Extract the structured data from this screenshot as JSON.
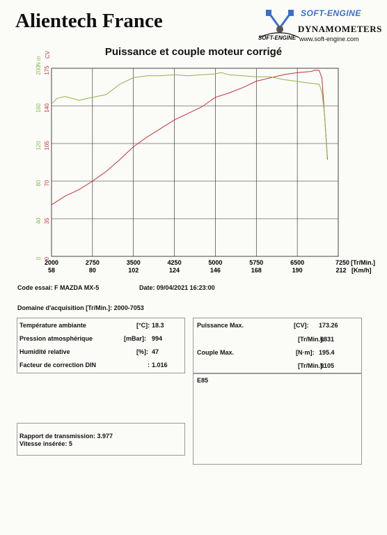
{
  "header": {
    "company": "Alientech France",
    "brand": "SOFT-ENGINE",
    "brand_small": "SOFT-ENGINE",
    "subtitle": "DYNAMOMETERS",
    "url": "www.soft-engine.com"
  },
  "chart_data": {
    "type": "line",
    "title": "Puissance et couple moteur corrigé",
    "x_unit": "[Tr/Min.]",
    "x_unit2": "[Km/h]",
    "x_ticks": [
      "2000",
      "2750",
      "3500",
      "4250",
      "5000",
      "5750",
      "6500",
      "7250"
    ],
    "x_ticks2": [
      "58",
      "80",
      "102",
      "124",
      "146",
      "168",
      "190",
      "212"
    ],
    "xlim": [
      2000,
      7250
    ],
    "y_unit_torque": "N m",
    "y_unit_power": "CV",
    "y_ticks_power": [
      "0",
      "35",
      "70",
      "105",
      "140",
      "175"
    ],
    "y_ticks_torque": [
      "0",
      "40",
      "80",
      "120",
      "160",
      "200"
    ],
    "ylim_power": [
      0,
      175
    ],
    "series": [
      {
        "color": "#c0343a",
        "x": [
          2000,
          2250,
          2500,
          2750,
          3000,
          3250,
          3500,
          3750,
          4000,
          4250,
          4500,
          4750,
          5000,
          5250,
          5500,
          5750,
          6000,
          6250,
          6500,
          6750,
          6831,
          6900,
          6950,
          7000,
          7053
        ],
        "y": [
          48,
          56,
          62,
          70,
          79,
          90,
          102,
          111,
          119,
          127,
          133,
          139,
          148,
          152,
          157,
          163,
          166,
          169,
          171,
          172,
          173.3,
          173,
          166,
          130,
          90
        ]
      },
      {
        "color": "#8ab84a",
        "x": [
          2000,
          2100,
          2250,
          2500,
          2750,
          3000,
          3250,
          3500,
          3750,
          4000,
          4250,
          4500,
          4750,
          5000,
          5105,
          5250,
          5500,
          5750,
          6000,
          6250,
          6500,
          6750,
          6900,
          6950,
          7000,
          7053
        ],
        "y": [
          162,
          168,
          170,
          166,
          169,
          172,
          183,
          190,
          192,
          192,
          193,
          192,
          193,
          194,
          195.4,
          193,
          192,
          191,
          191,
          188,
          186,
          184,
          183,
          175,
          150,
          105
        ]
      }
    ]
  },
  "test": {
    "code_label": "Code essai:",
    "code_value": "F MAZDA MX-5",
    "date_label": "Date:",
    "date_value": "09/04/2021 16:23:00",
    "domain_label": "Domaine d'acquisition [Tr/Min.]:",
    "domain_value": "2000-7053"
  },
  "conditions": [
    {
      "label": "Température ambiante",
      "unit": "[°C]:",
      "value": "18.3"
    },
    {
      "label": "Pression atmosphérique",
      "unit": "[mBar]:",
      "value": "994"
    },
    {
      "label": "Humidité relative",
      "unit": "[%]:",
      "value": "47"
    },
    {
      "label": "Facteur de correction DIN",
      "unit": ":",
      "value": "1.016"
    }
  ],
  "results": {
    "power_label": "Puissance Max.",
    "power_unit": "[CV]:",
    "power_value": "173.26",
    "power_rpm_unit": "[Tr/Min.]:",
    "power_rpm_value": "6831",
    "torque_label": "Couple Max.",
    "torque_unit": "[N·m]:",
    "torque_value": "195.4",
    "torque_rpm_unit": "[Tr/Min.]:",
    "torque_rpm_value": "5105"
  },
  "notes": {
    "fuel": "E85"
  },
  "transmission": {
    "ratio_label": "Rapport de transmission:",
    "ratio_value": "3.977",
    "gear_label": "Vitesse insérée:",
    "gear_value": "5"
  }
}
